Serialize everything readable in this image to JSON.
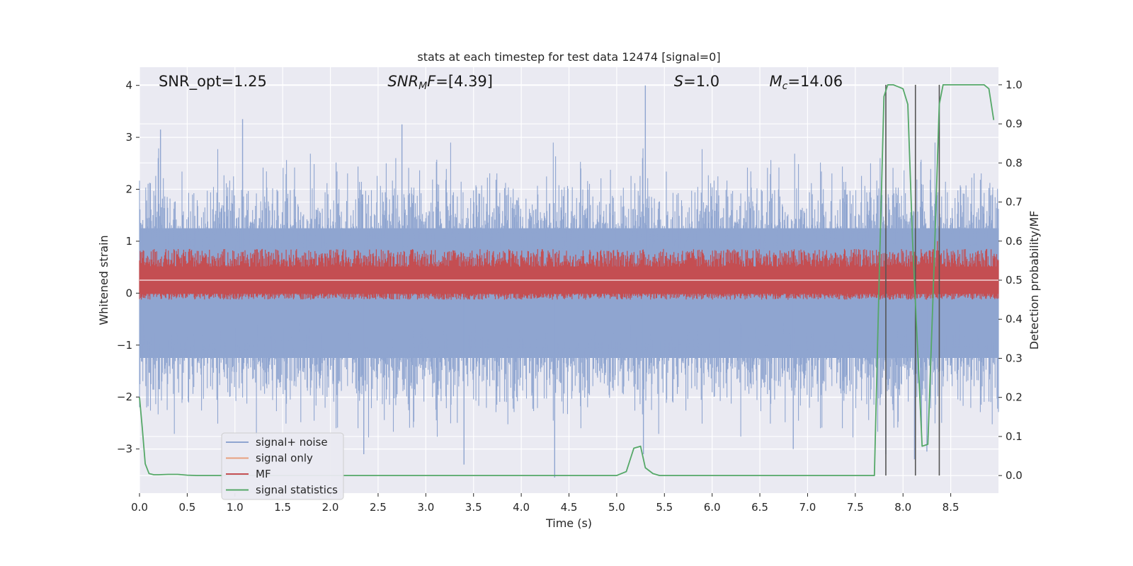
{
  "chart_data": {
    "type": "line",
    "title": "stats at each timestep for test data 12474 [signal=0]",
    "xlabel": "Time (s)",
    "ylabel": "Whitened strain",
    "y2label": "Detection probability/MF",
    "xlim": [
      0.0,
      9.0
    ],
    "ylim": [
      -3.85,
      4.35
    ],
    "y2lim": [
      -0.045,
      1.045
    ],
    "xticks": [
      0.0,
      0.5,
      1.0,
      1.5,
      2.0,
      2.5,
      3.0,
      3.5,
      4.0,
      4.5,
      5.0,
      5.5,
      6.0,
      6.5,
      7.0,
      7.5,
      8.0,
      8.5
    ],
    "xtick_labels": [
      "0.0",
      "0.5",
      "1.0",
      "1.5",
      "2.0",
      "2.5",
      "3.0",
      "3.5",
      "4.0",
      "4.5",
      "5.0",
      "5.5",
      "6.0",
      "6.5",
      "7.0",
      "7.5",
      "8.0",
      "8.5"
    ],
    "yticks": [
      4,
      3,
      2,
      1,
      0,
      -1,
      -2,
      -3
    ],
    "ytick_labels": [
      "4",
      "3",
      "2",
      "1",
      "0",
      "−1",
      "−2",
      "−3"
    ],
    "y2ticks": [
      1.0,
      0.9,
      0.8,
      0.7,
      0.6,
      0.5,
      0.4,
      0.3,
      0.2,
      0.1,
      0.0
    ],
    "y2tick_labels": [
      "1.0",
      "0.9",
      "0.8",
      "0.7",
      "0.6",
      "0.5",
      "0.4",
      "0.3",
      "0.2",
      "0.1",
      "0.0"
    ],
    "grid": true,
    "annotations": [
      {
        "prefix": "SNR_opt",
        "sub": "",
        "value": "=1.25",
        "italic": false,
        "x": 0.2
      },
      {
        "prefix": "SNR",
        "sub": "M",
        "suffix": "F",
        "value": "=[4.39]",
        "italic": true,
        "x": 2.6
      },
      {
        "prefix": "S",
        "sub": "",
        "value": "=1.0",
        "italic": true,
        "x": 5.6
      },
      {
        "prefix": "M",
        "sub": "c",
        "value": "=14.06",
        "italic": true,
        "x": 6.6
      }
    ],
    "legend": {
      "position": "lower-left",
      "entries": [
        "signal+ noise",
        "signal only",
        "MF",
        "signal statistics"
      ]
    },
    "colors": {
      "noise": "#8fa5d0",
      "signal_only": "#e8a07e",
      "mf": "#c44e52",
      "stats": "#55a868",
      "vlines": "#555555",
      "background": "#eaeaf2",
      "grid": "#ffffff"
    },
    "series": [
      {
        "name": "signal+ noise",
        "description": "dense whitened noise trace",
        "x_range": [
          0.0,
          9.0
        ],
        "typical_range": [
          -1.9,
          1.9
        ],
        "spikes": [
          {
            "x": 0.22,
            "y": 3.15
          },
          {
            "x": 1.08,
            "y": 3.35
          },
          {
            "x": 2.75,
            "y": 3.25
          },
          {
            "x": 5.3,
            "y": 4.0
          },
          {
            "x": 3.4,
            "y": -3.3
          },
          {
            "x": 4.35,
            "y": -3.55
          },
          {
            "x": 5.28,
            "y": -3.1
          },
          {
            "x": 7.82,
            "y": -3.1
          },
          {
            "x": 8.12,
            "y": -3.2
          },
          {
            "x": 8.25,
            "y": -3.05
          },
          {
            "x": 2.35,
            "y": -3.1
          },
          {
            "x": 6.85,
            "y": -3.0
          }
        ]
      },
      {
        "name": "signal only",
        "description": "zero signal (flat)",
        "x": [
          0.0,
          9.0
        ],
        "y": [
          0.0,
          0.0
        ]
      },
      {
        "name": "MF",
        "description": "matched filter output on secondary axis",
        "center": 0.5,
        "range": [
          0.45,
          0.58
        ],
        "spike": {
          "x": 8.36,
          "y": 0.6
        }
      },
      {
        "name": "signal statistics",
        "axis": "secondary",
        "x": [
          0.0,
          0.03,
          0.06,
          0.1,
          0.15,
          0.2,
          0.3,
          0.4,
          0.5,
          0.6,
          1.0,
          2.0,
          3.0,
          4.0,
          5.0,
          5.1,
          5.18,
          5.25,
          5.3,
          5.38,
          5.45,
          5.5,
          5.6,
          6.0,
          7.0,
          7.7,
          7.75,
          7.8,
          7.84,
          7.9,
          8.0,
          8.05,
          8.1,
          8.2,
          8.26,
          8.32,
          8.38,
          8.42,
          8.47,
          8.55,
          8.7,
          8.85,
          8.9,
          8.95
        ],
        "y": [
          0.2,
          0.12,
          0.03,
          0.005,
          0.002,
          0.002,
          0.003,
          0.003,
          0.001,
          0.0,
          0.0,
          0.0,
          0.0,
          0.0,
          0.0,
          0.01,
          0.07,
          0.075,
          0.02,
          0.005,
          0.0,
          0.0,
          0.0,
          0.0,
          0.0,
          0.0,
          0.5,
          0.97,
          1.0,
          1.0,
          0.99,
          0.95,
          0.6,
          0.075,
          0.08,
          0.5,
          0.95,
          1.0,
          1.0,
          1.0,
          1.0,
          1.0,
          0.99,
          0.91
        ]
      }
    ],
    "vlines": [
      7.82,
      8.13,
      8.38
    ]
  }
}
